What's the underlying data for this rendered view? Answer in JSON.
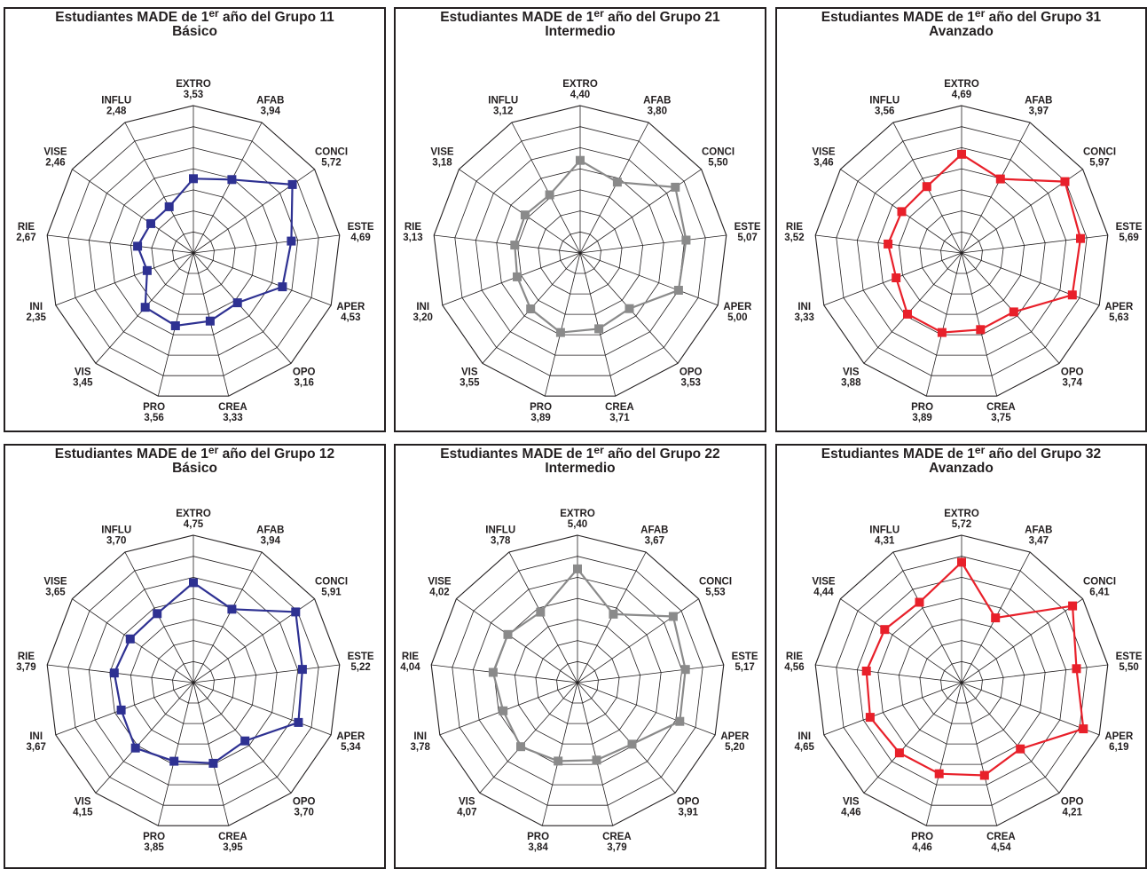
{
  "chart_data": [
    {
      "type": "radar",
      "title_prefix": "Estudiantes MADE de 1",
      "title_sup": "er",
      "title_suffix": " año del Grupo 11",
      "subtitle": "Básico",
      "categories": [
        "EXTRO",
        "AFAB",
        "CONCI",
        "ESTE",
        "APER",
        "OPO",
        "CREA",
        "PRO",
        "VIS",
        "INI",
        "RIE",
        "VISE",
        "INFLU"
      ],
      "values": [
        3.53,
        3.94,
        5.72,
        4.69,
        4.53,
        3.16,
        3.33,
        3.56,
        3.45,
        2.35,
        2.67,
        2.46,
        2.48
      ],
      "value_labels": [
        "3,53",
        "3,94",
        "5,72",
        "4,69",
        "4,53",
        "3,16",
        "3,33",
        "3,56",
        "3,45",
        "2,35",
        "2,67",
        "2,46",
        "2,48"
      ],
      "color": "#2e3192",
      "rlim": [
        0,
        7
      ]
    },
    {
      "type": "radar",
      "title_prefix": "Estudiantes MADE de 1",
      "title_sup": "er",
      "title_suffix": " año del Grupo 21",
      "subtitle": "Intermedio",
      "categories": [
        "EXTRO",
        "AFAB",
        "CONCI",
        "ESTE",
        "APER",
        "OPO",
        "CREA",
        "PRO",
        "VIS",
        "INI",
        "RIE",
        "VISE",
        "INFLU"
      ],
      "values": [
        4.4,
        3.8,
        5.5,
        5.07,
        5.0,
        3.53,
        3.71,
        3.89,
        3.55,
        3.2,
        3.13,
        3.18,
        3.12
      ],
      "value_labels": [
        "4,40",
        "3,80",
        "5,50",
        "5,07",
        "5,00",
        "3,53",
        "3,71",
        "3,89",
        "3,55",
        "3,20",
        "3,13",
        "3,18",
        "3,12"
      ],
      "color": "#8a8a8a",
      "rlim": [
        0,
        7
      ]
    },
    {
      "type": "radar",
      "title_prefix": "Estudiantes MADE de 1",
      "title_sup": "er",
      "title_suffix": " año del Grupo 31",
      "subtitle": "Avanzado",
      "categories": [
        "EXTRO",
        "AFAB",
        "CONCI",
        "ESTE",
        "APER",
        "OPO",
        "CREA",
        "PRO",
        "VIS",
        "INI",
        "RIE",
        "VISE",
        "INFLU"
      ],
      "values": [
        4.69,
        3.97,
        5.97,
        5.69,
        5.63,
        3.74,
        3.75,
        3.89,
        3.88,
        3.33,
        3.52,
        3.46,
        3.56
      ],
      "value_labels": [
        "4,69",
        "3,97",
        "5,97",
        "5,69",
        "5,63",
        "3,74",
        "3,75",
        "3,89",
        "3,88",
        "3,33",
        "3,52",
        "3,46",
        "3,56"
      ],
      "color": "#e8202a",
      "rlim": [
        0,
        7
      ]
    },
    {
      "type": "radar",
      "title_prefix": "Estudiantes MADE de 1",
      "title_sup": "er",
      "title_suffix": " año del Grupo 12",
      "subtitle": "Básico",
      "categories": [
        "EXTRO",
        "AFAB",
        "CONCI",
        "ESTE",
        "APER",
        "OPO",
        "CREA",
        "PRO",
        "VIS",
        "INI",
        "RIE",
        "VISE",
        "INFLU"
      ],
      "values": [
        4.75,
        3.94,
        5.91,
        5.22,
        5.34,
        3.7,
        3.95,
        3.85,
        4.15,
        3.67,
        3.79,
        3.65,
        3.7
      ],
      "value_labels": [
        "4,75",
        "3,94",
        "5,91",
        "5,22",
        "5,34",
        "3,70",
        "3,95",
        "3,85",
        "4,15",
        "3,67",
        "3,79",
        "3,65",
        "3,70"
      ],
      "color": "#2e3192",
      "rlim": [
        0,
        7
      ]
    },
    {
      "type": "radar",
      "title_prefix": "Estudiantes MADE de 1",
      "title_sup": "er",
      "title_suffix": " año del Grupo 22",
      "subtitle": "Intermedio",
      "categories": [
        "EXTRO",
        "AFAB",
        "CONCI",
        "ESTE",
        "APER",
        "OPO",
        "CREA",
        "PRO",
        "VIS",
        "INI",
        "RIE",
        "VISE",
        "INFLU"
      ],
      "values": [
        5.4,
        3.67,
        5.53,
        5.17,
        5.2,
        3.91,
        3.79,
        3.84,
        4.07,
        3.78,
        4.04,
        4.02,
        3.78
      ],
      "value_labels": [
        "5,40",
        "3,67",
        "5,53",
        "5,17",
        "5,20",
        "3,91",
        "3,79",
        "3,84",
        "4,07",
        "3,78",
        "4,04",
        "4,02",
        "3,78"
      ],
      "color": "#8a8a8a",
      "rlim": [
        0,
        7
      ]
    },
    {
      "type": "radar",
      "title_prefix": "Estudiantes MADE de 1",
      "title_sup": "er",
      "title_suffix": " año del Grupo 32",
      "subtitle": "Avanzado",
      "categories": [
        "EXTRO",
        "AFAB",
        "CONCI",
        "ESTE",
        "APER",
        "OPO",
        "CREA",
        "PRO",
        "VIS",
        "INI",
        "RIE",
        "VISE",
        "INFLU"
      ],
      "values": [
        5.72,
        3.47,
        6.41,
        5.5,
        6.19,
        4.21,
        4.54,
        4.46,
        4.46,
        4.65,
        4.56,
        4.44,
        4.31
      ],
      "value_labels": [
        "5,72",
        "3,47",
        "6,41",
        "5,50",
        "6,19",
        "4,21",
        "4,54",
        "4,46",
        "4,46",
        "4,65",
        "4,56",
        "4,44",
        "4,31"
      ],
      "color": "#e8202a",
      "rlim": [
        0,
        7
      ]
    }
  ]
}
